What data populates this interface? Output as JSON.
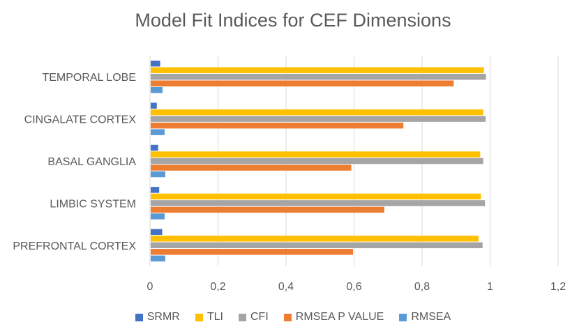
{
  "chart_data": {
    "type": "bar",
    "orientation": "horizontal",
    "title": "Model Fit Indices for CEF Dimensions",
    "categories": [
      "PREFRONTAL CORTEX",
      "LIMBIC SYSTEM",
      "BASAL GANGLIA",
      "CINGALATE CORTEX",
      "TEMPORAL LOBE"
    ],
    "series": [
      {
        "name": "RMSEA",
        "color": "#5b9bd5",
        "values": [
          0.045,
          0.043,
          0.045,
          0.043,
          0.037
        ]
      },
      {
        "name": "RMSEA P VALUE",
        "color": "#ed7d31",
        "values": [
          0.597,
          0.689,
          0.592,
          0.745,
          0.893
        ]
      },
      {
        "name": "CFI",
        "color": "#a5a5a5",
        "values": [
          0.978,
          0.985,
          0.98,
          0.987,
          0.988
        ]
      },
      {
        "name": "TLI",
        "color": "#ffc000",
        "values": [
          0.966,
          0.973,
          0.971,
          0.98,
          0.982
        ]
      },
      {
        "name": "SRMR",
        "color": "#4472c4",
        "values": [
          0.036,
          0.027,
          0.024,
          0.02,
          0.03
        ]
      }
    ],
    "legend_order": [
      "SRMR",
      "TLI",
      "CFI",
      "RMSEA P VALUE",
      "RMSEA"
    ],
    "xlim": [
      0,
      1.2
    ],
    "xticks": [
      "0",
      "0,2",
      "0,4",
      "0,6",
      "0,8",
      "1",
      "1,2"
    ],
    "grid": true,
    "legend_position": "bottom"
  }
}
